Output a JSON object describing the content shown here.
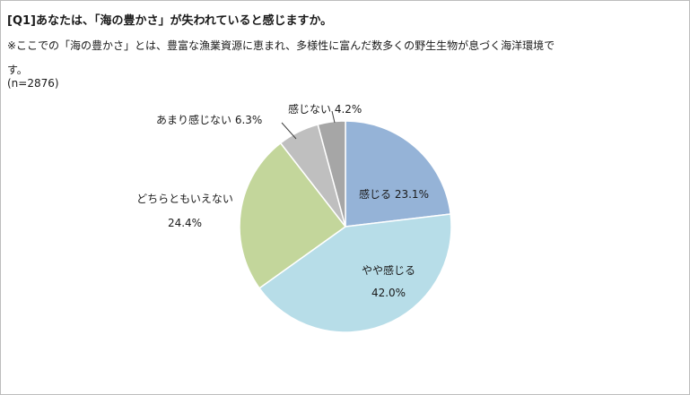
{
  "title": "[Q1]あなたは、「海の豊かさ」が失われていると感じますか。",
  "note": "※ここでの「海の豊かさ」とは、豊富な漁業資源に恵まれ、多様性に富んだ数多くの野生生物が息づく海洋環境です。",
  "sample": "(n=2876)",
  "chart_data": {
    "type": "pie",
    "slices": [
      {
        "label": "感じる",
        "value": 23.1,
        "display": "23.1%",
        "color": "#95b3d7"
      },
      {
        "label": "やや感じる",
        "value": 42.0,
        "display": "42.0%",
        "color": "#b7dde8"
      },
      {
        "label": "どちらともいえない",
        "value": 24.4,
        "display": "24.4%",
        "color": "#c3d69b"
      },
      {
        "label": "あまり感じない",
        "value": 6.3,
        "display": "6.3%",
        "color": "#bfbfbf"
      },
      {
        "label": "感じない",
        "value": 4.2,
        "display": "4.2%",
        "color": "#a6a6a6"
      }
    ],
    "start": "12 o'clock",
    "direction": "clockwise"
  }
}
